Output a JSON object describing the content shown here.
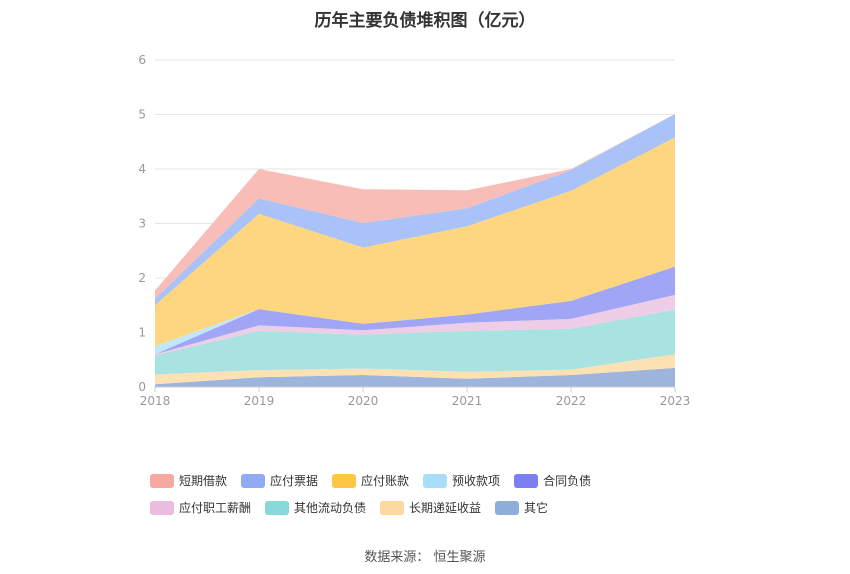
{
  "title": "历年主要负债堆积图（亿元）",
  "source": "数据来源：  恒生聚源",
  "chart_data": {
    "type": "area",
    "stacked": true,
    "categories": [
      "2018",
      "2019",
      "2020",
      "2021",
      "2022",
      "2023"
    ],
    "ylim": [
      0,
      6
    ],
    "yticks": [
      "0",
      "1",
      "2",
      "3",
      "4",
      "5",
      "6"
    ],
    "grid": true,
    "legend_position": "bottom",
    "series": [
      {
        "name": "其它",
        "color": "#9db4dd",
        "values": [
          0.05,
          0.18,
          0.22,
          0.15,
          0.22,
          0.35
        ]
      },
      {
        "name": "长期递延收益",
        "color": "#fde1b3",
        "values": [
          0.18,
          0.13,
          0.12,
          0.13,
          0.1,
          0.25
        ]
      },
      {
        "name": "其他流动负债",
        "color": "#a8e2e1",
        "values": [
          0.35,
          0.72,
          0.62,
          0.75,
          0.75,
          0.82
        ]
      },
      {
        "name": "应付职工薪酬",
        "color": "#eecde6",
        "values": [
          0.02,
          0.1,
          0.08,
          0.15,
          0.18,
          0.27
        ]
      },
      {
        "name": "合同负债",
        "color": "#a1a5f6",
        "values": [
          0.0,
          0.3,
          0.12,
          0.15,
          0.33,
          0.52
        ]
      },
      {
        "name": "预收款项",
        "color": "#c0e8fb",
        "values": [
          0.15,
          0.0,
          0.0,
          0.0,
          0.0,
          0.0
        ]
      },
      {
        "name": "应付账款",
        "color": "#fdd67f",
        "values": [
          0.75,
          1.75,
          1.4,
          1.62,
          2.02,
          2.37
        ]
      },
      {
        "name": "应付票据",
        "color": "#a9c2f7",
        "values": [
          0.12,
          0.28,
          0.45,
          0.33,
          0.38,
          0.43
        ]
      },
      {
        "name": "短期借款",
        "color": "#f8bdb7",
        "values": [
          0.15,
          0.54,
          0.62,
          0.33,
          0.02,
          0.0
        ]
      }
    ]
  },
  "legend": [
    {
      "label": "短期借款",
      "color": "#f5a9a0"
    },
    {
      "label": "应付票据",
      "color": "#8fabf2"
    },
    {
      "label": "应付账款",
      "color": "#fdc745"
    },
    {
      "label": "预收款项",
      "color": "#a9def8"
    },
    {
      "label": "合同负债",
      "color": "#7b7ff0"
    },
    {
      "label": "应付职工薪酬",
      "color": "#ebbbe0"
    },
    {
      "label": "其他流动负债",
      "color": "#86d9d6"
    },
    {
      "label": "长期递延收益",
      "color": "#fdd9a0"
    },
    {
      "label": "其它",
      "color": "#8eadd9"
    }
  ]
}
